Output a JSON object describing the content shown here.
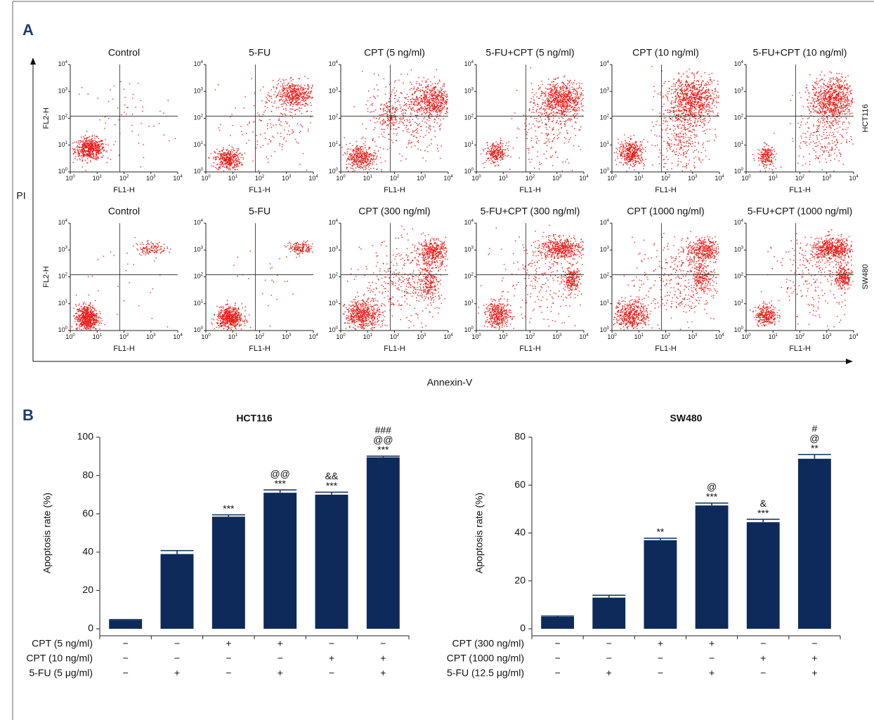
{
  "panel_a": {
    "label": "A",
    "y_axis_label": "PI",
    "x_axis_label": "Annexin-V",
    "plot_x_label": "FL1-H",
    "plot_y_label": "FL2-H",
    "tick_base": "10",
    "tick_exponents": [
      "0",
      "1",
      "2",
      "3",
      "4"
    ],
    "rows": [
      {
        "cell_line": "HCT116",
        "titles": [
          "Control",
          "5-FU",
          "CPT (5 ng/ml)",
          "5-FU+CPT (5 ng/ml)",
          "CPT (10 ng/ml)",
          "5-FU+CPT (10 ng/ml)"
        ]
      },
      {
        "cell_line": "SW480",
        "titles": [
          "Control",
          "5-FU",
          "CPT (300 ng/ml)",
          "5-FU+CPT (300 ng/ml)",
          "CPT (1000 ng/ml)",
          "5-FU+CPT (1000 ng/ml)"
        ]
      }
    ]
  },
  "panel_b_label": "B",
  "chart_data": [
    {
      "type": "bar",
      "title": "HCT116",
      "y_label": "Apoptosis rate (%)",
      "color": "#0d2a5a",
      "ylim": [
        0,
        100
      ],
      "yticks": [
        0,
        20,
        40,
        60,
        80,
        100
      ],
      "values": [
        4.5,
        39,
        58.5,
        71,
        70,
        89.5
      ],
      "errors": [
        0.3,
        1.8,
        1,
        1.5,
        1.3,
        0.6
      ],
      "annotations": [
        null,
        null,
        [
          "***"
        ],
        [
          "@@",
          "***"
        ],
        [
          "&&",
          "***"
        ],
        [
          "###",
          "@@",
          "***"
        ]
      ],
      "treatments": [
        {
          "name": "CPT (5 ng/ml)",
          "levels": [
            "−",
            "−",
            "+",
            "+",
            "−",
            "−"
          ]
        },
        {
          "name": "CPT (10 ng/ml)",
          "levels": [
            "−",
            "−",
            "−",
            "−",
            "+",
            "+"
          ]
        },
        {
          "name": "5-FU (5 μg/ml)",
          "levels": [
            "−",
            "+",
            "−",
            "+",
            "−",
            "+"
          ]
        }
      ]
    },
    {
      "type": "bar",
      "title": "SW480",
      "y_label": "Apoptosis rate (%)",
      "color": "#0d2a5a",
      "ylim": [
        0,
        80
      ],
      "yticks": [
        0,
        20,
        40,
        60,
        80
      ],
      "values": [
        5,
        13,
        37,
        51.5,
        44.5,
        71
      ],
      "errors": [
        0.3,
        1,
        0.8,
        1,
        1.2,
        1.8
      ],
      "annotations": [
        null,
        null,
        [
          "**"
        ],
        [
          "@",
          "***"
        ],
        [
          "&",
          "***"
        ],
        [
          "#",
          "@",
          "**"
        ]
      ],
      "treatments": [
        {
          "name": "CPT (300 ng/ml)",
          "levels": [
            "−",
            "−",
            "+",
            "+",
            "−",
            "−"
          ]
        },
        {
          "name": "CPT (1000 ng/ml)",
          "levels": [
            "−",
            "−",
            "−",
            "−",
            "+",
            "+"
          ]
        },
        {
          "name": "5-FU (12.5 μg/ml)",
          "levels": [
            "−",
            "+",
            "−",
            "+",
            "−",
            "+"
          ]
        }
      ]
    }
  ]
}
